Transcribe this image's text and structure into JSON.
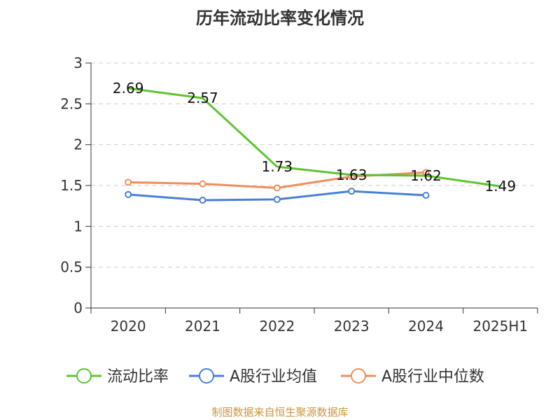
{
  "chart_data": {
    "type": "line",
    "title": "历年流动比率变化情况",
    "categories": [
      "2020",
      "2021",
      "2022",
      "2023",
      "2024",
      "2025H1"
    ],
    "ylim": [
      0,
      3
    ],
    "yticks": [
      "0",
      "0.5",
      "1",
      "1.5",
      "2",
      "2.5",
      "3"
    ],
    "grid": true,
    "legend_position": "bottom",
    "series": [
      {
        "name": "流动比率",
        "color": "#5ec42f",
        "values": [
          2.69,
          2.57,
          1.73,
          1.63,
          1.62,
          1.49
        ],
        "labels": [
          "2.69",
          "2.57",
          "1.73",
          "1.63",
          "1.62",
          "1.49"
        ]
      },
      {
        "name": "A股行业均值",
        "color": "#4a7fd8",
        "values": [
          1.39,
          1.32,
          1.33,
          1.43,
          1.38,
          null
        ]
      },
      {
        "name": "A股行业中位数",
        "color": "#f08e5b",
        "values": [
          1.54,
          1.52,
          1.47,
          1.61,
          1.66,
          null
        ]
      }
    ]
  },
  "source_text": "制图数据来自恒生聚源数据库"
}
